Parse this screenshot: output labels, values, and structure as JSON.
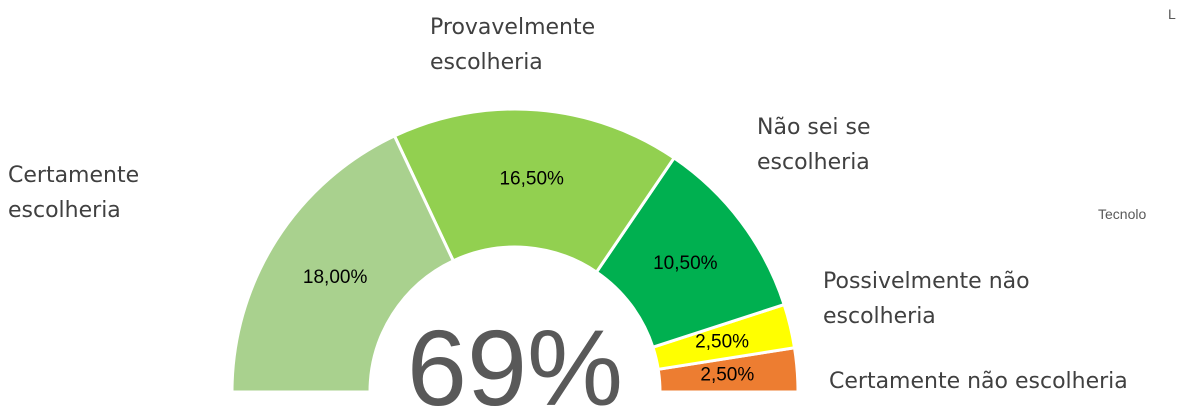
{
  "chart_data": {
    "type": "half-donut",
    "categories": [
      "Certamente escolheria",
      "Provavelmente escolheria",
      "Não sei se escolheria",
      "Possivelmente não escolheria",
      "Certamente não escolheria"
    ],
    "values": [
      18,
      16.5,
      10.5,
      2.5,
      2.5
    ],
    "value_labels": [
      "18,00%",
      "16,50%",
      "10,50%",
      "2,50%",
      "2,50%"
    ],
    "colors": [
      "#a9d18e",
      "#92d050",
      "#00b050",
      "#ffff00",
      "#ed7d31"
    ],
    "center_label": "69%",
    "annotations": [
      "L",
      "Tecnolo"
    ]
  }
}
